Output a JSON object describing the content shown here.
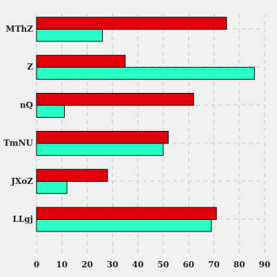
{
  "chart_data": {
    "type": "bar",
    "orientation": "horizontal",
    "title": "",
    "xlabel": "",
    "ylabel": "",
    "categories": [
      "MThZ",
      "Z",
      "nQ",
      "TmNU",
      "JXoZ",
      "LLgj"
    ],
    "series": [
      {
        "values": [
          75,
          35,
          62,
          52,
          28,
          71
        ],
        "color": "#e0000b"
      },
      {
        "values": [
          26,
          86,
          11,
          50,
          12,
          69
        ],
        "color": "#2affc8"
      }
    ],
    "xlim": [
      0,
      90
    ],
    "xticks": [
      0,
      10,
      20,
      30,
      40,
      50,
      60,
      70,
      80,
      90
    ],
    "grid": true,
    "background": "#f0f0f0"
  }
}
